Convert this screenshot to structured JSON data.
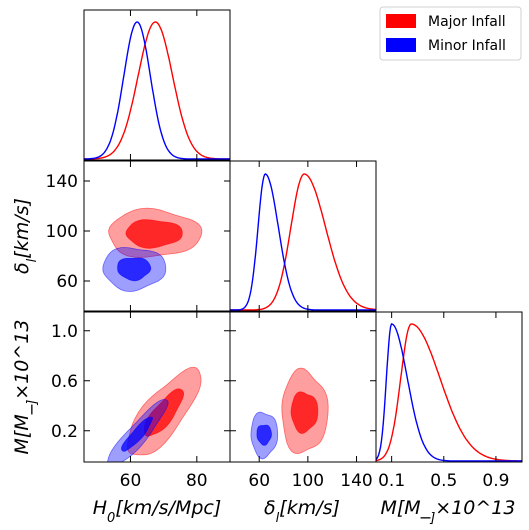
{
  "chart_data": {
    "type": "corner",
    "parameters": [
      {
        "key": "H0",
        "label": "H_0[km/s/Mpc]",
        "range": [
          46,
          90
        ],
        "ticks": [
          "60",
          "80"
        ],
        "tick_values": [
          60,
          80
        ]
      },
      {
        "key": "delta",
        "label": "δ_l[km/s]",
        "range": [
          36,
          156
        ],
        "ticks": [
          "60",
          "100",
          "140"
        ],
        "tick_values": [
          60,
          100,
          140
        ]
      },
      {
        "key": "M",
        "label": "M[M_⊙]×10^13",
        "range": [
          -0.05,
          1.15
        ],
        "ticks": [
          "0.2",
          "0.6",
          "1.0"
        ],
        "tick_values": [
          0.2,
          0.6,
          1.0
        ],
        "diag_ticks": [
          "0.1",
          "0.5",
          "0.9"
        ],
        "diag_tick_values": [
          0.1,
          0.5,
          0.9
        ],
        "diag_range": [
          -0.02,
          1.1
        ]
      }
    ],
    "series": [
      {
        "name": "Major Infall",
        "color": "#ff0000",
        "marginals": {
          "H0": {
            "mean": 67.5,
            "sd": 5.2
          },
          "delta": {
            "mean": 97,
            "sd": 11,
            "skew_right": 1.6
          },
          "M": {
            "mode": 0.25,
            "sd_left": 0.08,
            "sd_right": 0.22
          }
        },
        "contours": {
          "H0_delta": {
            "center": [
              67,
              98
            ],
            "inner": [
              8.5,
              11
            ],
            "outer": [
              14,
              19
            ]
          },
          "H0_M": {
            "center": [
              70,
              0.34
            ],
            "inner": [
              6.5,
              0.13
            ],
            "outer": [
              12,
              0.26
            ],
            "tilt": 0.9
          },
          "delta_M": {
            "center": [
              97,
              0.35
            ],
            "inner": [
              11,
              0.16
            ],
            "outer": [
              19,
              0.33
            ]
          }
        }
      },
      {
        "name": "Minor Infall",
        "color": "#0000ff",
        "marginals": {
          "H0": {
            "mean": 62,
            "sd": 4
          },
          "delta": {
            "mean": 65,
            "sd": 6,
            "skew_right": 1.8
          },
          "M": {
            "mode": 0.1,
            "sd_left": 0.04,
            "sd_right": 0.12
          }
        },
        "contours": {
          "H0_delta": {
            "center": [
              61,
              70
            ],
            "inner": [
              5,
              9
            ],
            "outer": [
              9.5,
              17
            ]
          },
          "H0_M": {
            "center": [
              62,
              0.17
            ],
            "inner": [
              5,
              0.07
            ],
            "outer": [
              10,
              0.13
            ],
            "tilt": 0.85
          },
          "delta_M": {
            "center": [
              64,
              0.17
            ],
            "inner": [
              6,
              0.08
            ],
            "outer": [
              11,
              0.18
            ]
          }
        }
      }
    ],
    "legend": {
      "placement": "top-right",
      "entries": [
        "Major Infall",
        "Minor Infall"
      ]
    }
  }
}
